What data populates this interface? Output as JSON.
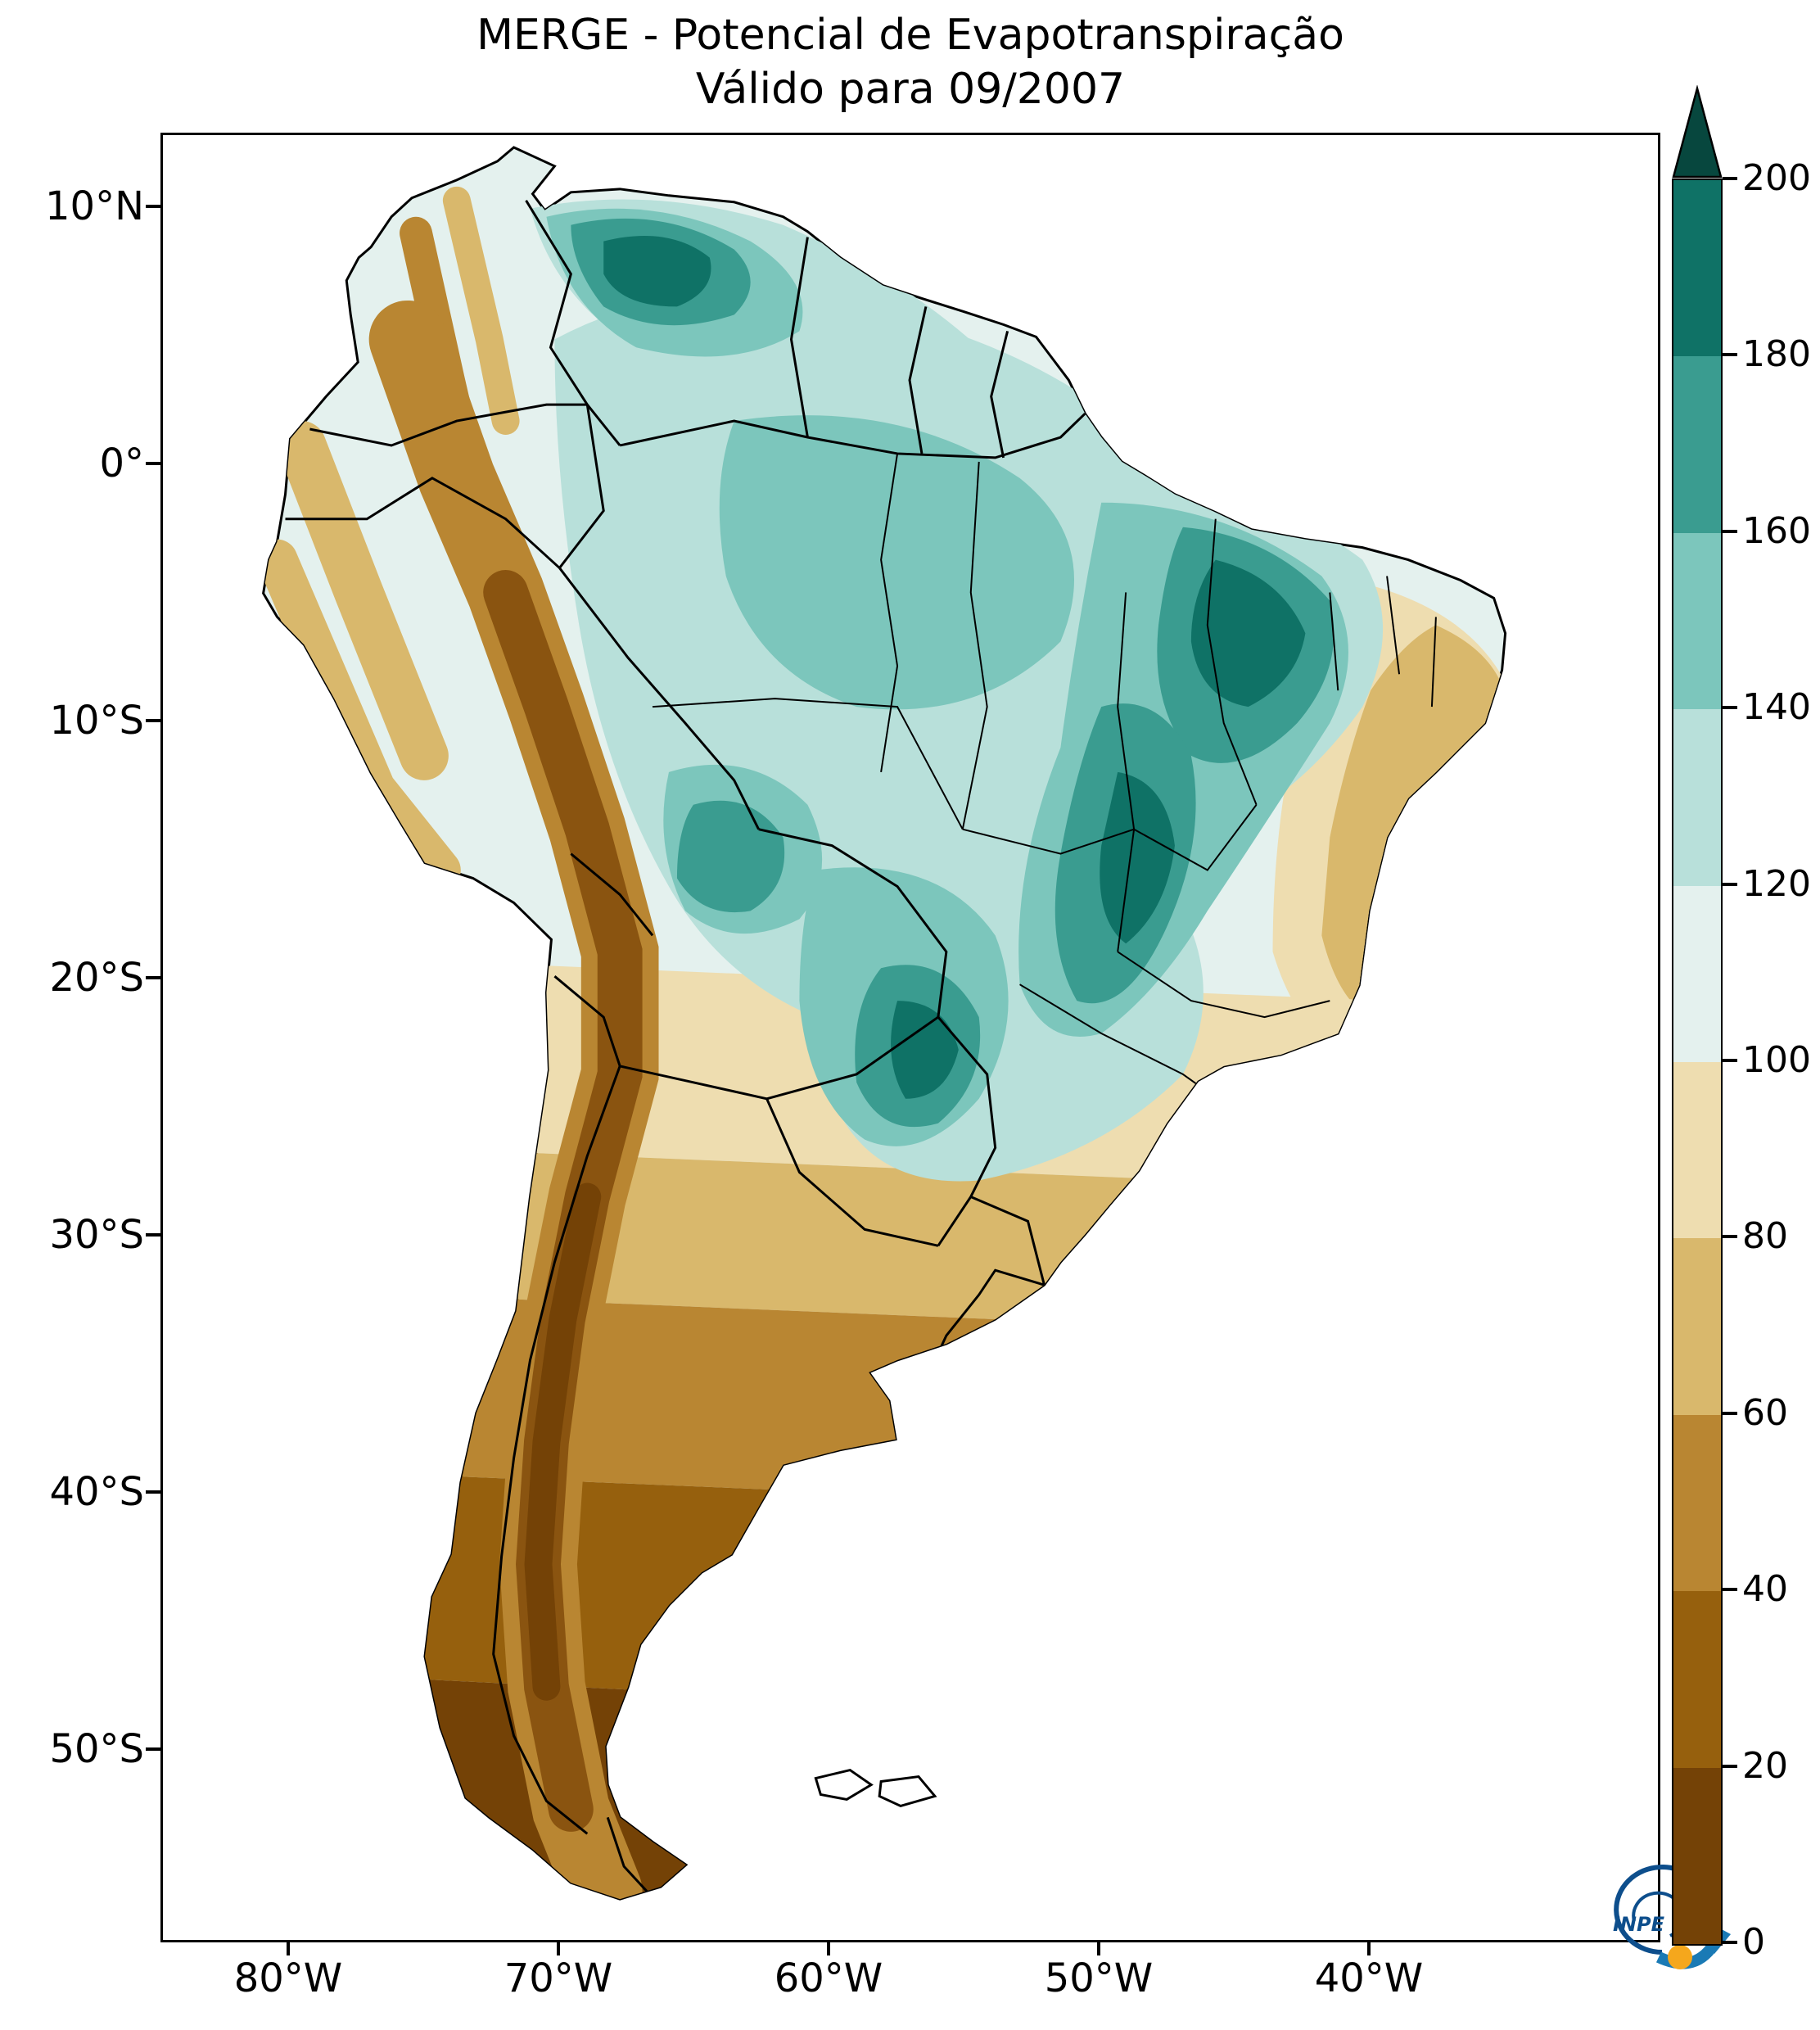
{
  "title": {
    "line1": "MERGE - Potencial de Evapotranspiração",
    "line2": "Válido para 09/2007"
  },
  "axes": {
    "y_ticks": [
      "10°N",
      "0°",
      "10°S",
      "20°S",
      "30°S",
      "40°S",
      "50°S"
    ],
    "x_ticks": [
      "80°W",
      "70°W",
      "60°W",
      "50°W",
      "40°W"
    ]
  },
  "colorbar": {
    "min": 0,
    "max": 200,
    "extend": "max",
    "tick_labels": [
      200,
      180,
      160,
      140,
      120,
      100,
      80,
      60,
      40,
      20,
      0
    ],
    "over_color": "#07473e",
    "segments": [
      {
        "from": 0,
        "to": 20,
        "color": "#744206"
      },
      {
        "from": 20,
        "to": 40,
        "color": "#96600d"
      },
      {
        "from": 40,
        "to": 60,
        "color": "#b98632"
      },
      {
        "from": 60,
        "to": 80,
        "color": "#d9b86c"
      },
      {
        "from": 80,
        "to": 100,
        "color": "#eeddb0"
      },
      {
        "from": 100,
        "to": 120,
        "color": "#e4f1ee"
      },
      {
        "from": 120,
        "to": 140,
        "color": "#b8e0da"
      },
      {
        "from": 140,
        "to": 160,
        "color": "#7cc6bc"
      },
      {
        "from": 160,
        "to": 180,
        "color": "#3a9c90"
      },
      {
        "from": 180,
        "to": 200,
        "color": "#0f7266"
      }
    ]
  },
  "logo": {
    "label": "INPE",
    "ring_color": "#0d4e8c",
    "arrow_color": "#1a7ab5",
    "dot_color": "#f5a71c"
  },
  "chart_data": {
    "type": "heatmap",
    "title": "MERGE - Potencial de Evapotranspiração",
    "subtitle": "Válido para 09/2007",
    "region": "South America",
    "x_axis": {
      "ticks": [
        "80°W",
        "70°W",
        "60°W",
        "50°W",
        "40°W"
      ]
    },
    "y_axis": {
      "ticks": [
        "10°N",
        "0°",
        "10°S",
        "20°S",
        "30°S",
        "40°S",
        "50°S"
      ]
    },
    "colorbar": {
      "range": [
        0,
        200
      ],
      "tick_step": 20,
      "extend": "max",
      "palette": [
        "#744206",
        "#96600d",
        "#b98632",
        "#d9b86c",
        "#eeddb0",
        "#e4f1ee",
        "#b8e0da",
        "#7cc6bc",
        "#3a9c90",
        "#0f7266"
      ],
      "over_color": "#07473e"
    },
    "pattern_summary": [
      "Teal values 120–200 cover the Amazon basin, northern South America and central/northeastern Brazil",
      "Darkest teal maxima (>=180) over northern Venezuela, Maranhão/Tocantins region and the Bolivia–Paraguay border",
      "Cream/tan values 60–100 over the eastern Brazil coastal strip, Uruguay and northern Argentina",
      "Brown values 0–60 along the Andes cordillera and across Patagonia, decreasing toward the far south"
    ]
  }
}
